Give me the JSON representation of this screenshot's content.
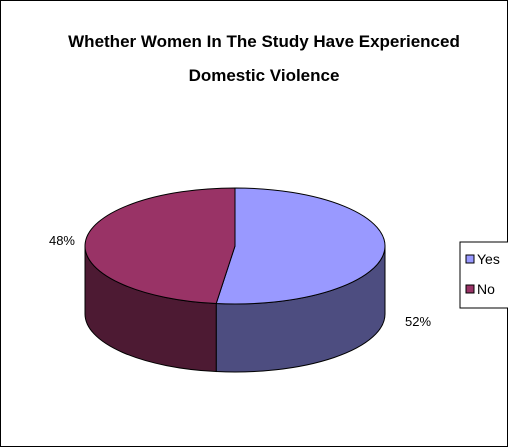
{
  "chart_data": {
    "type": "pie",
    "style": "3d",
    "title": [
      "Whether Women In The Study  Have Experienced",
      "Domestic Violence"
    ],
    "categories": [
      "Yes",
      "No"
    ],
    "values": [
      52,
      48
    ],
    "data_labels": [
      "52%",
      "48%"
    ],
    "legend_position": "right",
    "colors": {
      "Yes": {
        "top": "#9999ff",
        "side": "#4d4d80"
      },
      "No": {
        "top": "#993366",
        "side": "#4d1a33"
      }
    }
  }
}
